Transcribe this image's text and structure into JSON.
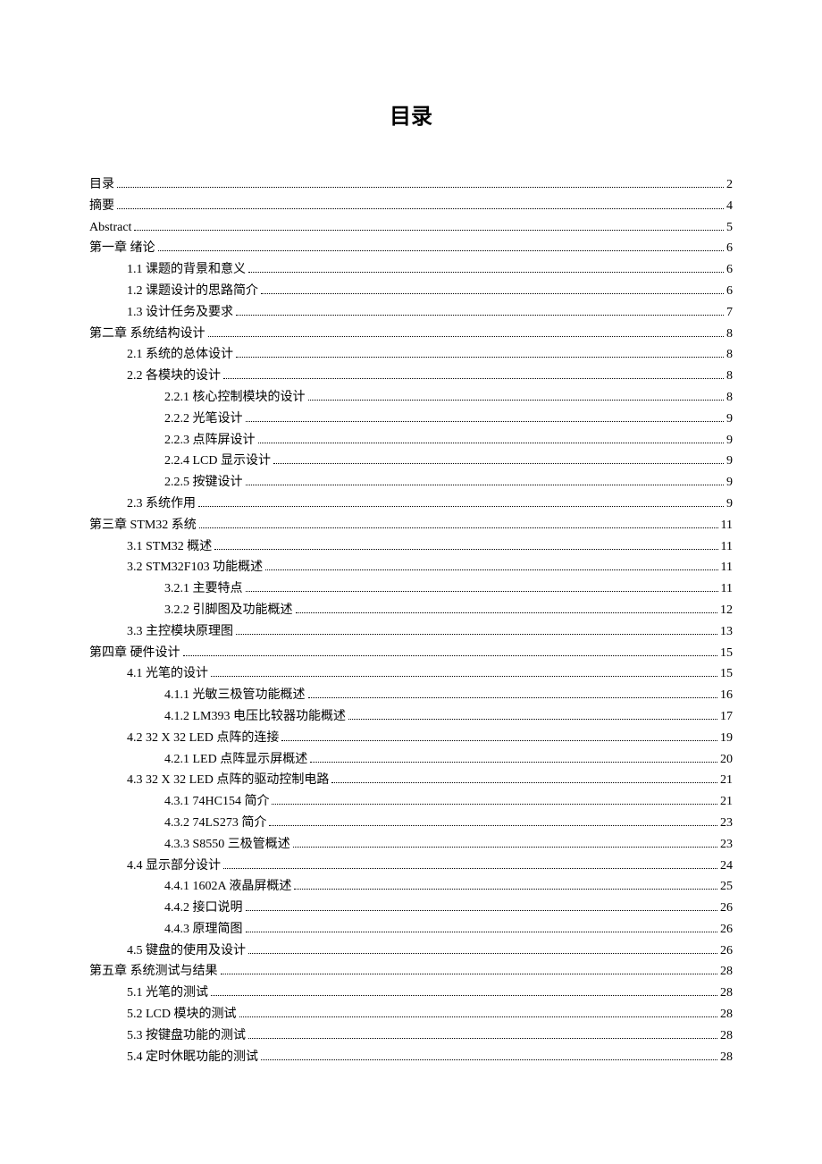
{
  "title": "目录",
  "entries": [
    {
      "text": "目录",
      "page": "2",
      "indent": 0
    },
    {
      "text": "摘要",
      "page": "4",
      "indent": 0
    },
    {
      "text": "Abstract",
      "page": "5",
      "indent": 0
    },
    {
      "text": "第一章  绪论",
      "page": "6",
      "indent": 0
    },
    {
      "text": "1.1 课题的背景和意义",
      "page": "6",
      "indent": 1
    },
    {
      "text": "1.2 课题设计的思路简介",
      "page": "6",
      "indent": 1
    },
    {
      "text": "1.3 设计任务及要求",
      "page": "7",
      "indent": 1
    },
    {
      "text": "第二章  系统结构设计",
      "page": "8",
      "indent": 0
    },
    {
      "text": "2.1 系统的总体设计",
      "page": "8",
      "indent": 1
    },
    {
      "text": "2.2 各模块的设计",
      "page": "8",
      "indent": 1
    },
    {
      "text": "2.2.1 核心控制模块的设计",
      "page": "8",
      "indent": 2
    },
    {
      "text": "2.2.2 光笔设计",
      "page": "9",
      "indent": 2
    },
    {
      "text": "2.2.3 点阵屏设计",
      "page": "9",
      "indent": 2
    },
    {
      "text": "2.2.4 LCD 显示设计",
      "page": "9",
      "indent": 2
    },
    {
      "text": "2.2.5  按键设计",
      "page": "9",
      "indent": 2
    },
    {
      "text": "2.3 系统作用",
      "page": "9",
      "indent": 1
    },
    {
      "text": "第三章  STM32 系统",
      "page": "11",
      "indent": 0
    },
    {
      "text": "3.1 STM32 概述",
      "page": "11",
      "indent": 1
    },
    {
      "text": "3.2 STM32F103 功能概述",
      "page": "11",
      "indent": 1
    },
    {
      "text": "3.2.1  主要特点",
      "page": "11",
      "indent": 2
    },
    {
      "text": "3.2.2  引脚图及功能概述",
      "page": "12",
      "indent": 2
    },
    {
      "text": "3.3  主控模块原理图",
      "page": "13",
      "indent": 1
    },
    {
      "text": "第四章  硬件设计",
      "page": "15",
      "indent": 0
    },
    {
      "text": "4.1  光笔的设计",
      "page": "15",
      "indent": 1
    },
    {
      "text": "4.1.1  光敏三极管功能概述",
      "page": "16",
      "indent": 2
    },
    {
      "text": "4.1.2 LM393 电压比较器功能概述",
      "page": "17",
      "indent": 2
    },
    {
      "text": "4.2 32 X 32 LED 点阵的连接",
      "page": "19",
      "indent": 1
    },
    {
      "text": "4.2.1 LED 点阵显示屏概述",
      "page": "20",
      "indent": 2
    },
    {
      "text": "4.3 32 X 32 LED 点阵的驱动控制电路",
      "page": "21",
      "indent": 1
    },
    {
      "text": "4.3.1 74HC154 简介",
      "page": "21",
      "indent": 2
    },
    {
      "text": "4.3.2 74LS273 简介",
      "page": "23",
      "indent": 2
    },
    {
      "text": "4.3.3 S8550 三极管概述",
      "page": "23",
      "indent": 2
    },
    {
      "text": "4.4 显示部分设计",
      "page": "24",
      "indent": 1
    },
    {
      "text": "4.4.1 1602A 液晶屏概述",
      "page": "25",
      "indent": 2
    },
    {
      "text": "4.4.2 接口说明",
      "page": "26",
      "indent": 2
    },
    {
      "text": "4.4.3  原理简图",
      "page": "26",
      "indent": 2
    },
    {
      "text": "4.5 键盘的使用及设计",
      "page": "26",
      "indent": 1
    },
    {
      "text": "第五章  系统测试与结果",
      "page": "28",
      "indent": 0
    },
    {
      "text": "5.1  光笔的测试",
      "page": "28",
      "indent": 1
    },
    {
      "text": "5.2 LCD 模块的测试",
      "page": "28",
      "indent": 1
    },
    {
      "text": "5.3 按键盘功能的测试",
      "page": "28",
      "indent": 1
    },
    {
      "text": "5.4 定时休眠功能的测试",
      "page": "28",
      "indent": 1
    }
  ]
}
